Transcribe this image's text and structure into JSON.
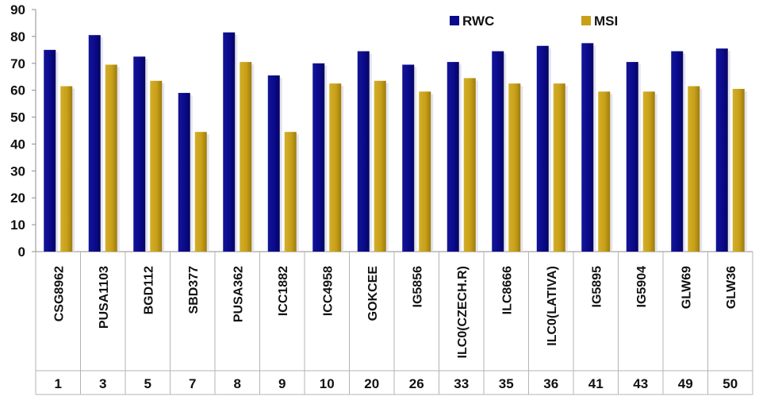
{
  "chart_data": {
    "type": "bar",
    "categories": [
      "CSG8962",
      "PUSA1103",
      "BGD112",
      "SBD377",
      "PUSA362",
      "ICC1882",
      "ICC4958",
      "GOKCEE",
      "IG5856",
      "ILC0(CZECH.R)",
      "ILC8666",
      "ILC0(LATIVA)",
      "IG5895",
      "IG5904",
      "GLW69",
      "GLW36"
    ],
    "category_numbers": [
      "1",
      "3",
      "5",
      "7",
      "8",
      "9",
      "10",
      "20",
      "26",
      "33",
      "35",
      "36",
      "41",
      "43",
      "49",
      "50"
    ],
    "series": [
      {
        "name": "RWC",
        "color": "#0a0a8c",
        "values": [
          75,
          80.5,
          72.5,
          59,
          81.5,
          65.5,
          70,
          74.5,
          69.5,
          70.5,
          74.5,
          76.5,
          77.5,
          70.5,
          74.5,
          75.5
        ]
      },
      {
        "name": "MSI",
        "color": "#c8a018",
        "values": [
          61.5,
          69.5,
          63.5,
          44.5,
          70.5,
          44.5,
          62.5,
          63.5,
          59.5,
          64.5,
          62.5,
          62.5,
          59.5,
          59.5,
          61.5,
          60.5
        ]
      }
    ],
    "ylim": [
      0,
      90
    ],
    "yticks": [
      "0",
      "10",
      "20",
      "30",
      "40",
      "50",
      "60",
      "70",
      "80",
      "90"
    ],
    "grid": false,
    "legend_position": "top-right"
  }
}
